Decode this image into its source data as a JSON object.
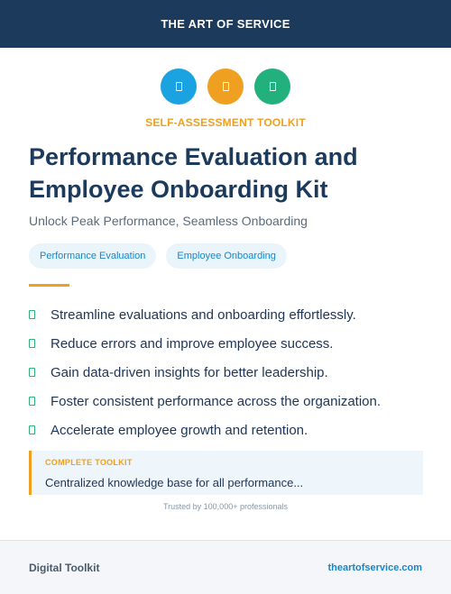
{
  "header": {
    "brand": "THE ART OF SERVICE"
  },
  "icons": [
    {
      "name": "document-icon",
      "color": "#1aa3e0"
    },
    {
      "name": "document-icon",
      "color": "#f0a020"
    },
    {
      "name": "document-icon",
      "color": "#22b07d"
    }
  ],
  "kicker": "SELF-ASSESSMENT TOOLKIT",
  "title_line1": "Performance Evaluation and",
  "title_line2": "Employee Onboarding Kit",
  "subtitle": "Unlock Peak Performance, Seamless Onboarding",
  "tags": [
    "Performance Evaluation",
    "Employee Onboarding"
  ],
  "features": [
    "Streamline evaluations and onboarding effortlessly.",
    "Reduce errors and improve employee success.",
    "Gain data-driven insights for better leadership.",
    "Foster consistent performance across the organization.",
    "Accelerate employee growth and retention."
  ],
  "toolkit": {
    "label": "COMPLETE TOOLKIT",
    "description": "Centralized knowledge base for all performance..."
  },
  "trusted": "Trusted by 100,000+ professionals",
  "footer": {
    "left": "Digital Toolkit",
    "right": "theartofservice.com"
  },
  "colors": {
    "navy": "#1b3a5c",
    "accent": "#f0a020",
    "link": "#1a86c8",
    "check": "#2bb673"
  }
}
